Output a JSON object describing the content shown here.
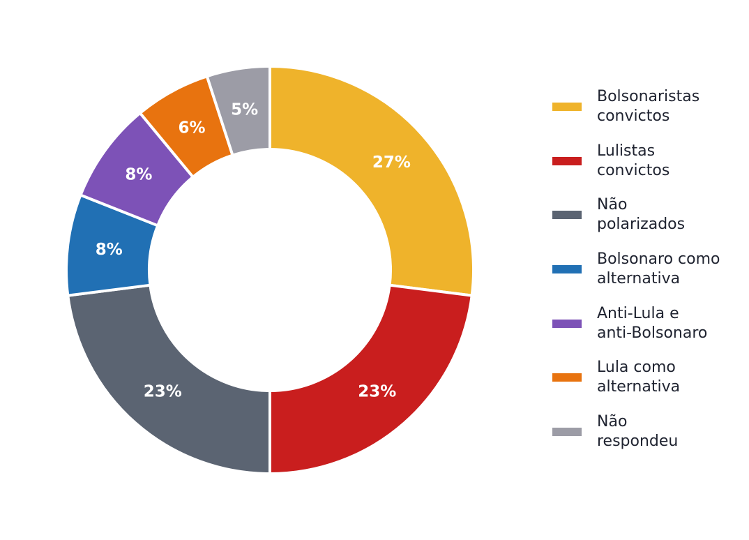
{
  "chart_data": {
    "type": "pie",
    "donut": true,
    "title": "",
    "legend_position": "right",
    "slices": [
      {
        "label": "Bolsonaristas\nconvictos",
        "value": 27,
        "display": "27%",
        "color": "#EFB32B"
      },
      {
        "label": "Lulistas\nconvictos",
        "value": 23,
        "display": "23%",
        "color": "#C91E1E"
      },
      {
        "label": "Não\npolarizados",
        "value": 23,
        "display": "23%",
        "color": "#5B6472"
      },
      {
        "label": "Bolsonaro como\nalternativa",
        "value": 8,
        "display": "8%",
        "color": "#2170B4"
      },
      {
        "label": "Anti-Lula e\nanti-Bolsonaro",
        "value": 8,
        "display": "8%",
        "color": "#7D52B7"
      },
      {
        "label": "Lula como\nalternativa",
        "value": 6,
        "display": "6%",
        "color": "#E8730F"
      },
      {
        "label": "Não\nrespondeu",
        "value": 5,
        "display": "5%",
        "color": "#9C9CA6"
      }
    ]
  }
}
